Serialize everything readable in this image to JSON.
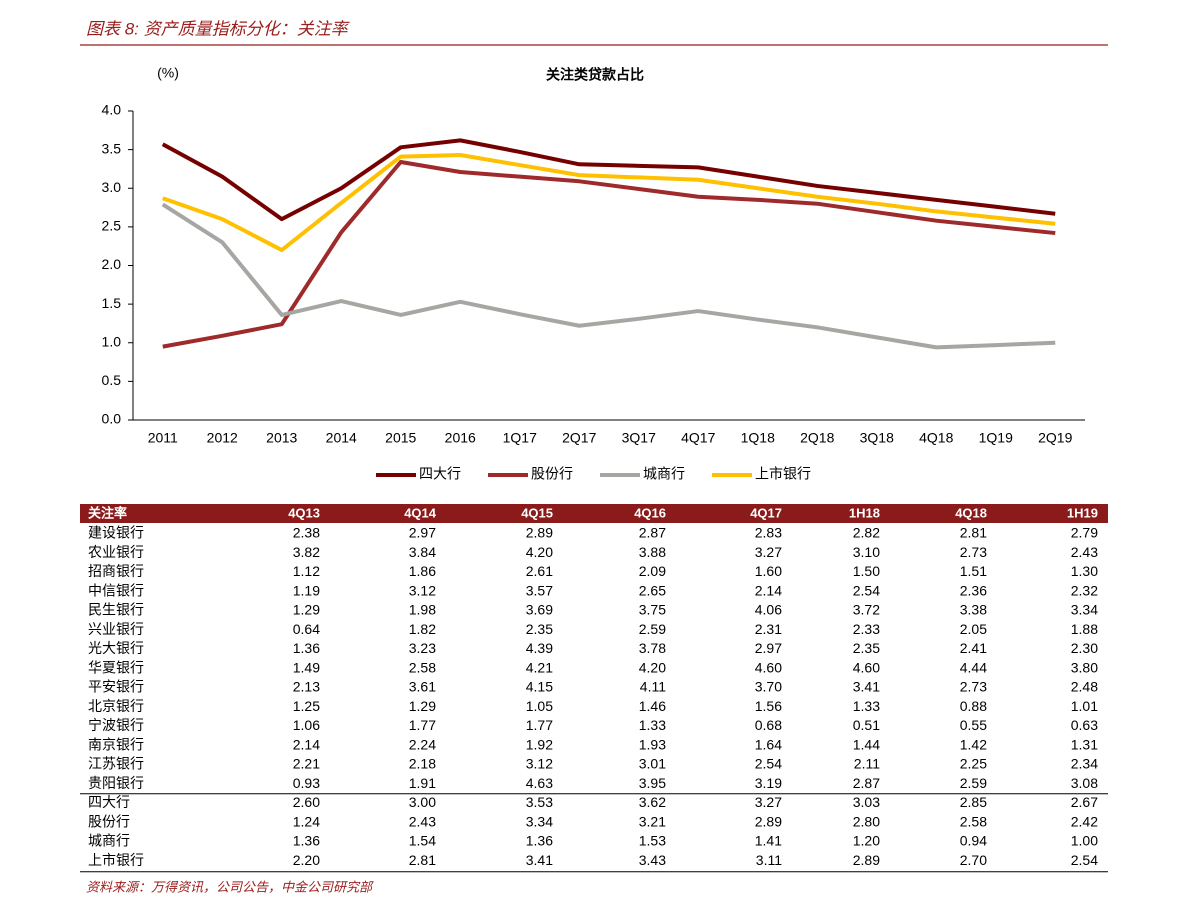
{
  "header": {
    "title": "图表 8: 资产质量指标分化：关注率"
  },
  "chart_data": {
    "type": "line",
    "title": "关注类贷款占比",
    "y_label": "(%)",
    "categories": [
      "2011",
      "2012",
      "2013",
      "2014",
      "2015",
      "2016",
      "1Q17",
      "2Q17",
      "3Q17",
      "4Q17",
      "1Q18",
      "2Q18",
      "3Q18",
      "4Q18",
      "1Q19",
      "2Q19"
    ],
    "series": [
      {
        "name": "四大行",
        "color": "#760000",
        "values": [
          3.57,
          3.15,
          2.6,
          3.0,
          3.53,
          3.62,
          3.47,
          3.31,
          3.29,
          3.27,
          3.15,
          3.03,
          2.94,
          2.85,
          2.76,
          2.67
        ]
      },
      {
        "name": "股份行",
        "color": "#9e2a2b",
        "values": [
          0.95,
          1.09,
          1.24,
          2.43,
          3.34,
          3.21,
          3.15,
          3.09,
          2.99,
          2.89,
          2.85,
          2.8,
          2.69,
          2.58,
          2.5,
          2.42
        ]
      },
      {
        "name": "城商行",
        "color": "#a6a6a2",
        "values": [
          2.79,
          2.3,
          1.36,
          1.54,
          1.36,
          1.53,
          1.37,
          1.22,
          1.31,
          1.41,
          1.3,
          1.2,
          1.07,
          0.94,
          0.97,
          1.0
        ]
      },
      {
        "name": "上市银行",
        "color": "#ffc000",
        "values": [
          2.87,
          2.6,
          2.2,
          2.81,
          3.41,
          3.43,
          3.3,
          3.17,
          3.14,
          3.11,
          3.0,
          2.89,
          2.8,
          2.7,
          2.62,
          2.54
        ]
      }
    ],
    "ylim": [
      0,
      4
    ],
    "yticks": [
      {
        "value": 0,
        "label": "0.0"
      },
      0.5,
      {
        "value": 1,
        "label": "1.0"
      },
      1.5,
      {
        "value": 2,
        "label": "2.0"
      },
      2.5,
      {
        "value": 3,
        "label": "3.0"
      },
      3.5,
      {
        "value": 4,
        "label": "4.0"
      }
    ],
    "legend": "bottom"
  },
  "table": {
    "header": [
      "关注率",
      "4Q13",
      "4Q14",
      "4Q15",
      "4Q16",
      "4Q17",
      "1H18",
      "4Q18",
      "1H19"
    ],
    "bank_rows": [
      [
        "建设银行",
        "2.38",
        "2.97",
        "2.89",
        "2.87",
        "2.83",
        "2.82",
        "2.81",
        "2.79"
      ],
      [
        "农业银行",
        "3.82",
        "3.84",
        "4.20",
        "3.88",
        "3.27",
        "3.10",
        "2.73",
        "2.43"
      ],
      [
        "招商银行",
        "1.12",
        "1.86",
        "2.61",
        "2.09",
        "1.60",
        "1.50",
        "1.51",
        "1.30"
      ],
      [
        "中信银行",
        "1.19",
        "3.12",
        "3.57",
        "2.65",
        "2.14",
        "2.54",
        "2.36",
        "2.32"
      ],
      [
        "民生银行",
        "1.29",
        "1.98",
        "3.69",
        "3.75",
        "4.06",
        "3.72",
        "3.38",
        "3.34"
      ],
      [
        "兴业银行",
        "0.64",
        "1.82",
        "2.35",
        "2.59",
        "2.31",
        "2.33",
        "2.05",
        "1.88"
      ],
      [
        "光大银行",
        "1.36",
        "3.23",
        "4.39",
        "3.78",
        "2.97",
        "2.35",
        "2.41",
        "2.30"
      ],
      [
        "华夏银行",
        "1.49",
        "2.58",
        "4.21",
        "4.20",
        "4.60",
        "4.60",
        "4.44",
        "3.80"
      ],
      [
        "平安银行",
        "2.13",
        "3.61",
        "4.15",
        "4.11",
        "3.70",
        "3.41",
        "2.73",
        "2.48"
      ],
      [
        "北京银行",
        "1.25",
        "1.29",
        "1.05",
        "1.46",
        "1.56",
        "1.33",
        "0.88",
        "1.01"
      ],
      [
        "宁波银行",
        "1.06",
        "1.77",
        "1.77",
        "1.33",
        "0.68",
        "0.51",
        "0.55",
        "0.63"
      ],
      [
        "南京银行",
        "2.14",
        "2.24",
        "1.92",
        "1.93",
        "1.64",
        "1.44",
        "1.42",
        "1.31"
      ],
      [
        "江苏银行",
        "2.21",
        "2.18",
        "3.12",
        "3.01",
        "2.54",
        "2.11",
        "2.25",
        "2.34"
      ],
      [
        "贵阳银行",
        "0.93",
        "1.91",
        "4.63",
        "3.95",
        "3.19",
        "2.87",
        "2.59",
        "3.08"
      ]
    ],
    "group_rows": [
      [
        "四大行",
        "2.60",
        "3.00",
        "3.53",
        "3.62",
        "3.27",
        "3.03",
        "2.85",
        "2.67"
      ],
      [
        "股份行",
        "1.24",
        "2.43",
        "3.34",
        "3.21",
        "2.89",
        "2.80",
        "2.58",
        "2.42"
      ],
      [
        "城商行",
        "1.36",
        "1.54",
        "1.36",
        "1.53",
        "1.41",
        "1.20",
        "0.94",
        "1.00"
      ],
      [
        "上市银行",
        "2.20",
        "2.81",
        "3.41",
        "3.43",
        "3.11",
        "2.89",
        "2.70",
        "2.54"
      ]
    ]
  },
  "source": "资料来源：万得资讯，公司公告，中金公司研究部"
}
